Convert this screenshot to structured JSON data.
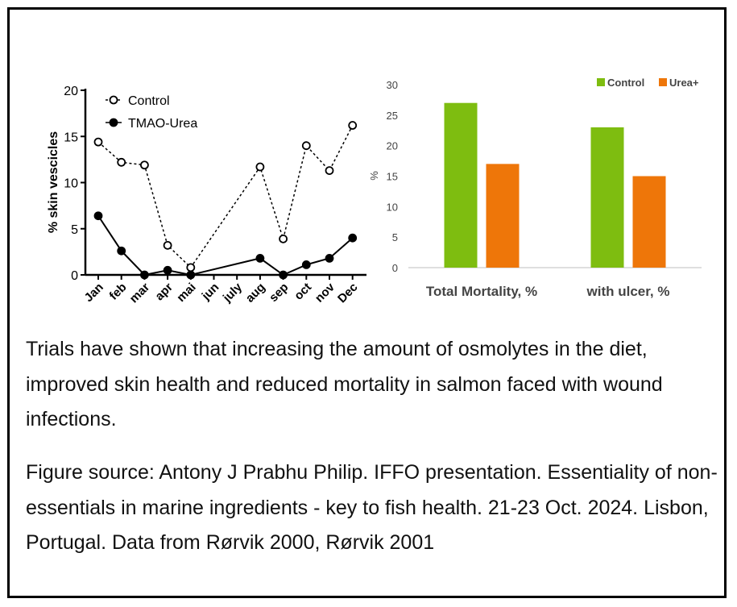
{
  "chart_data": [
    {
      "type": "line",
      "ylabel": "% skin vescicles",
      "ylim": [
        0,
        20
      ],
      "yticks": [
        "0",
        "5",
        "10",
        "15",
        "20"
      ],
      "categories": [
        "Jan",
        "feb",
        "mar",
        "apr",
        "mai",
        "jun",
        "july",
        "aug",
        "sep",
        "oct",
        "nov",
        "Dec"
      ],
      "legend_position": "top-left",
      "series": [
        {
          "name": "Control",
          "style": "dashed-open-circle",
          "values": [
            14.4,
            12.2,
            11.9,
            3.2,
            0.8,
            null,
            null,
            11.7,
            3.9,
            14.0,
            11.3,
            16.2
          ]
        },
        {
          "name": "TMAO-Urea",
          "style": "solid-filled-circle",
          "values": [
            6.4,
            2.6,
            0.0,
            0.5,
            0.0,
            null,
            null,
            1.8,
            0.0,
            1.1,
            1.8,
            4.0
          ]
        }
      ]
    },
    {
      "type": "bar",
      "ylabel": "%",
      "ylim": [
        0,
        30
      ],
      "yticks": [
        "0",
        "5",
        "10",
        "15",
        "20",
        "25",
        "30"
      ],
      "categories": [
        "Total Mortality, %",
        "with ulcer, %"
      ],
      "legend_position": "top-right",
      "series": [
        {
          "name": "Control",
          "color": "#7ebd10",
          "values": [
            27,
            23
          ]
        },
        {
          "name": "Urea+",
          "color": "#ee7609",
          "values": [
            17,
            15
          ]
        }
      ]
    }
  ],
  "text": {
    "paragraph1": "Trials have shown that increasing the amount of osmolytes in the diet, improved skin health and reduced mortality in salmon faced with wound infections.",
    "paragraph2": "Figure source: Antony J Prabhu Philip. IFFO presentation. Essentiality of non-essentials in marine ingredients - key to fish health. 21-23 Oct. 2024. Lisbon, Portugal. Data from Rørvik 2000, Rørvik 2001"
  }
}
